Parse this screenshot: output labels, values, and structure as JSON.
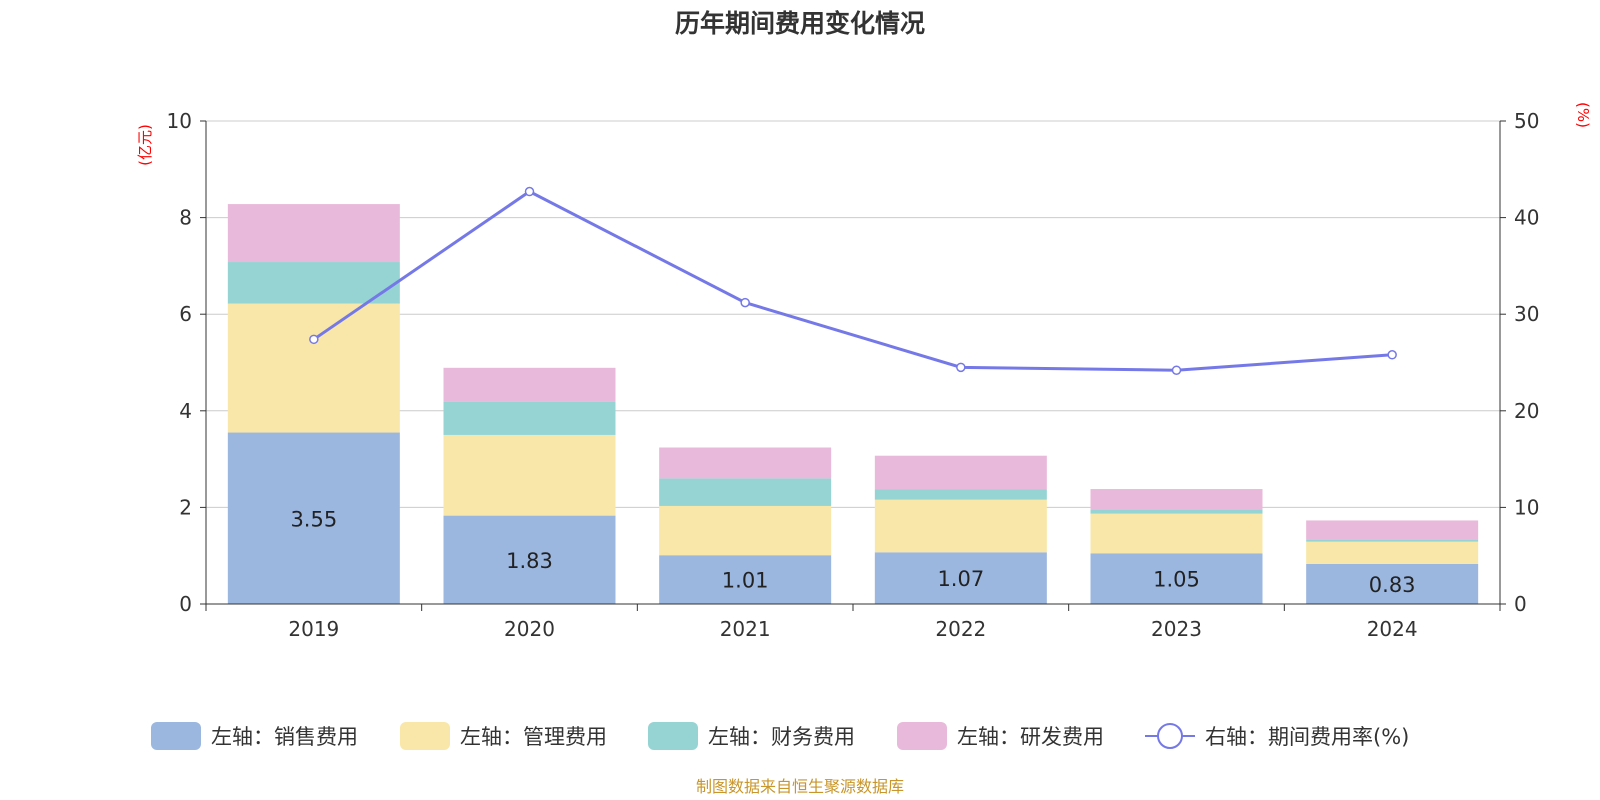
{
  "title": "历年期间费用变化情况",
  "source_note": "制图数据来自恒生聚源数据库",
  "colors": {
    "sales": "#9bb7e0",
    "admin": "#f8e7a8",
    "finance": "#96d4d4",
    "rnd": "#e8b9da",
    "line": "#7579e7",
    "grid": "#cccccc",
    "axis": "#333333",
    "unit": "#ff0000"
  },
  "chart_data": {
    "type": "bar",
    "title": "历年期间费用变化情况",
    "categories": [
      "2019",
      "2020",
      "2021",
      "2022",
      "2023",
      "2024"
    ],
    "left_axis": {
      "unit": "(亿元)",
      "ylim": [
        0,
        10
      ],
      "ticks": [
        "0",
        "2",
        "4",
        "6",
        "8",
        "10"
      ]
    },
    "right_axis": {
      "unit": "(%)",
      "ylim": [
        0,
        50
      ],
      "ticks": [
        "0",
        "10",
        "20",
        "30",
        "40",
        "50"
      ]
    },
    "series": [
      {
        "name": "左轴：销售费用",
        "kind": "bar",
        "axis": "left",
        "color": "#9bb7e0",
        "values": [
          3.55,
          1.83,
          1.01,
          1.07,
          1.05,
          0.83
        ],
        "labels": [
          "3.55",
          "1.83",
          "1.01",
          "1.07",
          "1.05",
          "0.83"
        ]
      },
      {
        "name": "左轴：管理费用",
        "kind": "bar",
        "axis": "left",
        "color": "#f8e7a8",
        "values": [
          2.67,
          1.67,
          1.02,
          1.09,
          0.82,
          0.46
        ]
      },
      {
        "name": "左轴：财务费用",
        "kind": "bar",
        "axis": "left",
        "color": "#96d4d4",
        "values": [
          0.86,
          0.69,
          0.57,
          0.21,
          0.09,
          0.05
        ]
      },
      {
        "name": "左轴：研发费用",
        "kind": "bar",
        "axis": "left",
        "color": "#e8b9da",
        "values": [
          1.2,
          0.7,
          0.64,
          0.7,
          0.42,
          0.39
        ]
      },
      {
        "name": "右轴：期间费用率(%)",
        "kind": "line",
        "axis": "right",
        "color": "#7579e7",
        "values": [
          27.4,
          42.7,
          31.2,
          24.5,
          24.2,
          25.8
        ]
      }
    ],
    "legend_position": "bottom",
    "grid": true
  }
}
